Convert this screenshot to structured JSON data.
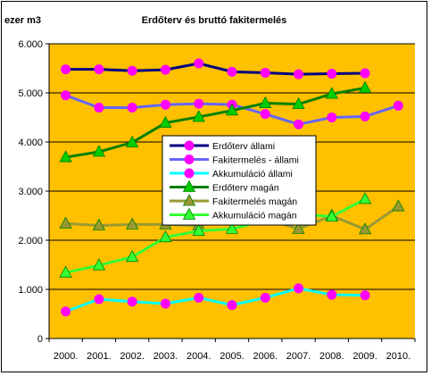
{
  "chart_data": {
    "type": "line",
    "title": "Erdőterv és bruttó fakitermelés",
    "ylabel": "ezer m3",
    "xlabel": "",
    "categories": [
      "2000.",
      "2001.",
      "2002.",
      "2003.",
      "2004.",
      "2005.",
      "2006.",
      "2007.",
      "2008.",
      "2009.",
      "2010."
    ],
    "ylim": [
      0,
      6000
    ],
    "yticks": [
      0,
      1000,
      2000,
      3000,
      4000,
      5000,
      6000
    ],
    "ytick_labels": [
      "0",
      "1.000",
      "2.000",
      "3.000",
      "4.000",
      "5.000",
      "6.000"
    ],
    "grid": "horizontal",
    "legend_position": "center",
    "plot_background": "#FFC000",
    "series": [
      {
        "name": "Erdőterv állami",
        "line_color": "#000080",
        "marker": "circle",
        "marker_color": "#FF00FF",
        "values": [
          5480,
          5480,
          5450,
          5470,
          5600,
          5430,
          5410,
          5380,
          5390,
          5400,
          null
        ]
      },
      {
        "name": "Fakitermelés - állami",
        "line_color": "#6666FF",
        "marker": "circle",
        "marker_color": "#FF00FF",
        "values": [
          4950,
          4700,
          4700,
          4760,
          4780,
          4760,
          4570,
          4360,
          4500,
          4520,
          4740
        ]
      },
      {
        "name": "Akkumuláció állami",
        "line_color": "#00FFFF",
        "marker": "circle",
        "marker_color": "#FF00FF",
        "values": [
          550,
          800,
          750,
          710,
          830,
          680,
          830,
          1020,
          890,
          880,
          null
        ]
      },
      {
        "name": "Erdőterv magán",
        "line_color": "#008000",
        "marker": "triangle",
        "marker_color": "#00CC00",
        "values": [
          3690,
          3800,
          3990,
          4390,
          4510,
          4640,
          4790,
          4770,
          4980,
          5100,
          null
        ]
      },
      {
        "name": "Fakitermelés magán",
        "line_color": "#999933",
        "marker": "triangle",
        "marker_color": "#999933",
        "values": [
          2340,
          2300,
          2320,
          2320,
          2300,
          2400,
          2440,
          2230,
          2500,
          2220,
          2690
        ]
      },
      {
        "name": "Akkumuláció magán",
        "line_color": "#33FF33",
        "marker": "triangle",
        "marker_color": "#33FF33",
        "values": [
          1340,
          1490,
          1660,
          2060,
          2190,
          2230,
          2400,
          2540,
          2480,
          2840,
          null
        ]
      }
    ]
  }
}
